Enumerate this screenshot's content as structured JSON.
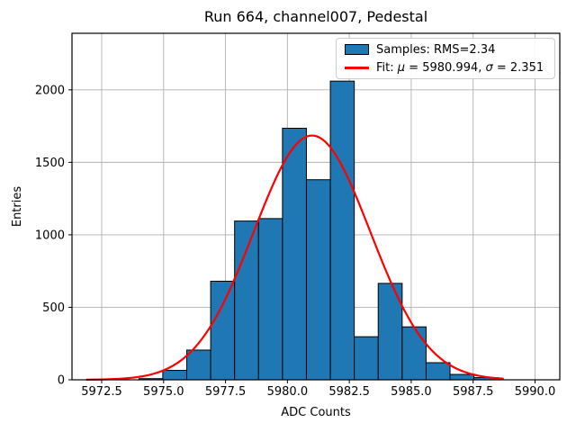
{
  "figure": {
    "title": "Run 664, channel007, Pedestal",
    "xlabel": "ADC Counts",
    "ylabel": "Entries"
  },
  "legend": {
    "samples": "Samples: RMS=2.34",
    "fit_prefix": "Fit: ",
    "fit_mu_symbol": "μ",
    "fit_mu_value": " = 5980.994, ",
    "fit_sigma_symbol": "σ",
    "fit_sigma_value": " = 2.351"
  },
  "chart_data": {
    "type": "bar",
    "subtype": "histogram",
    "title": "Run 664, channel007, Pedestal",
    "xlabel": "ADC Counts",
    "ylabel": "Entries",
    "grid": true,
    "legend_position": "upper right",
    "legend_entries": [
      "Samples: RMS=2.34",
      "Fit: μ = 5980.994, σ = 2.351"
    ],
    "rms": 2.34,
    "bins": {
      "start": 5974.0,
      "width": 0.9667,
      "count": 15
    },
    "counts": [
      8,
      65,
      205,
      680,
      1095,
      1112,
      1735,
      1380,
      2060,
      297,
      665,
      365,
      118,
      37,
      15
    ],
    "fit": {
      "mu": 5980.994,
      "sigma": 2.351,
      "peak": 1685,
      "x_start": 5971.9,
      "x_end": 5988.7
    },
    "xlim": [
      5971.3,
      5991.0
    ],
    "ylim": [
      0,
      2390
    ],
    "x_ticks": [
      5972.5,
      5975.0,
      5977.5,
      5980.0,
      5982.5,
      5985.0,
      5987.5,
      5990.0
    ],
    "x_tick_labels": [
      "5972.5",
      "5975.0",
      "5977.5",
      "5980.0",
      "5982.5",
      "5985.0",
      "5987.5",
      "5990.0"
    ],
    "y_ticks": [
      0,
      500,
      1000,
      1500,
      2000
    ],
    "y_tick_labels": [
      "0",
      "500",
      "1000",
      "1500",
      "2000"
    ],
    "colors": {
      "bar_fill": "#1f77b4",
      "bar_edge": "#000000",
      "fit_line": "#ff0000",
      "grid": "#b0b0b0",
      "spine": "#000000",
      "background": "#ffffff"
    }
  }
}
